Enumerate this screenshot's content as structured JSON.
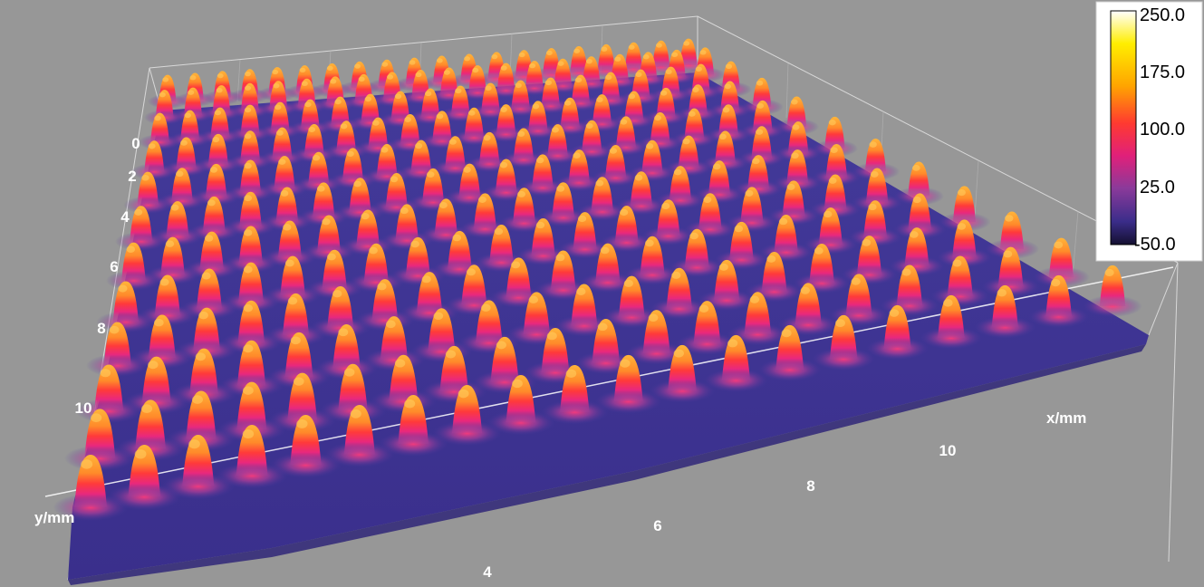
{
  "chart_data": {
    "type": "surface",
    "title": "",
    "xlabel": "x/mm",
    "ylabel": "y/mm",
    "x_ticks": [
      "4",
      "6",
      "8",
      "10"
    ],
    "y_ticks": [
      "0",
      "2",
      "4",
      "6",
      "8",
      "10"
    ],
    "grid": true,
    "colorbar": {
      "ticks": [
        "250.0",
        "175.0",
        "100.0",
        "25.0",
        "-50.0"
      ],
      "range": [
        -50,
        250
      ],
      "colors": [
        "#ffffff",
        "#ffee00",
        "#ffa500",
        "#ff4500",
        "#e0207a",
        "#8a3a9a",
        "#3b2d8a",
        "#141030"
      ]
    },
    "peaks": {
      "grid_rows": 12,
      "grid_cols": 20,
      "spacing_mm": 0.55,
      "peak_value": 175,
      "base_value": 0
    }
  }
}
